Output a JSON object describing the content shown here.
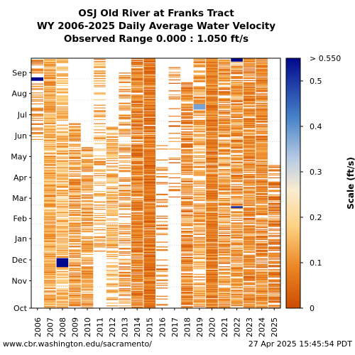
{
  "title": {
    "line1": "OSJ Old River at Franks Tract",
    "line2": "WY 2006-2025 Daily Average Water Velocity",
    "line3": "Observed Range 0.000 : 1.050 ft/s"
  },
  "footer": {
    "url": "www.cbr.washington.edu/sacramento/",
    "timestamp": "27 Apr 2025 15:45:54 PDT"
  },
  "chart_data": {
    "type": "heatmap",
    "title": "OSJ Old River at Franks Tract",
    "subtitle": "WY 2006-2025 Daily Average Water Velocity",
    "x_labels": [
      "2006",
      "2007",
      "2008",
      "2009",
      "2010",
      "2011",
      "2012",
      "2013",
      "2014",
      "2015",
      "2016",
      "2017",
      "2018",
      "2019",
      "2020",
      "2021",
      "2022",
      "2023",
      "2024",
      "2025"
    ],
    "y_labels": [
      "Oct",
      "Nov",
      "Dec",
      "Jan",
      "Feb",
      "Mar",
      "Apr",
      "May",
      "Jun",
      "Jul",
      "Aug",
      "Sep"
    ],
    "colorbar": {
      "label": "Scale (ft/s)",
      "ticks": [
        0,
        0.1,
        0.2,
        0.3,
        0.4,
        0.5
      ],
      "max_label": "> 0.550",
      "range": [
        0,
        0.55
      ]
    },
    "coverage": [
      {
        "year": "2006",
        "start_day": 245,
        "end_day": 365,
        "level": 0.09,
        "density": 0.4
      },
      {
        "year": "2007",
        "start_day": 0,
        "end_day": 365,
        "level": 0.13,
        "density": 0.85
      },
      {
        "year": "2008",
        "start_day": 0,
        "end_day": 365,
        "level": 0.15,
        "density": 0.7
      },
      {
        "year": "2009",
        "start_day": 0,
        "end_day": 270,
        "level": 0.11,
        "density": 0.7
      },
      {
        "year": "2010",
        "start_day": 0,
        "end_day": 235,
        "level": 0.11,
        "density": 0.7
      },
      {
        "year": "2011",
        "start_day": 80,
        "end_day": 365,
        "level": 0.12,
        "density": 0.35
      },
      {
        "year": "2012",
        "start_day": 0,
        "end_day": 265,
        "level": 0.14,
        "density": 0.55
      },
      {
        "year": "2013",
        "start_day": 0,
        "end_day": 345,
        "level": 0.1,
        "density": 0.4
      },
      {
        "year": "2014",
        "start_day": 0,
        "end_day": 365,
        "level": 0.08,
        "density": 0.85
      },
      {
        "year": "2015",
        "start_day": 0,
        "end_day": 365,
        "level": 0.07,
        "density": 0.95
      },
      {
        "year": "2016",
        "start_day": 0,
        "end_day": 240,
        "level": 0.08,
        "density": 0.2
      },
      {
        "year": "2017",
        "start_day": 160,
        "end_day": 365,
        "level": 0.08,
        "density": 0.15
      },
      {
        "year": "2018",
        "start_day": 0,
        "end_day": 330,
        "level": 0.09,
        "density": 0.75
      },
      {
        "year": "2019",
        "start_day": 0,
        "end_day": 365,
        "level": 0.12,
        "density": 0.6
      },
      {
        "year": "2020",
        "start_day": 0,
        "end_day": 365,
        "level": 0.08,
        "density": 0.95
      },
      {
        "year": "2021",
        "start_day": 0,
        "end_day": 365,
        "level": 0.1,
        "density": 0.7
      },
      {
        "year": "2022",
        "start_day": 0,
        "end_day": 365,
        "level": 0.1,
        "density": 0.7
      },
      {
        "year": "2023",
        "start_day": 0,
        "end_day": 365,
        "level": 0.09,
        "density": 0.8
      },
      {
        "year": "2024",
        "start_day": 0,
        "end_day": 365,
        "level": 0.09,
        "density": 0.8
      },
      {
        "year": "2025",
        "start_day": 0,
        "end_day": 210,
        "level": 0.07,
        "density": 0.55
      }
    ],
    "highlights": [
      {
        "year": "2006",
        "start_day": 332,
        "end_day": 337,
        "value": 0.55
      },
      {
        "year": "2008",
        "start_day": 60,
        "end_day": 73,
        "value": 0.55
      },
      {
        "year": "2019",
        "start_day": 290,
        "end_day": 298,
        "value": 0.38
      },
      {
        "year": "2022",
        "start_day": 146,
        "end_day": 149,
        "value": 0.5
      },
      {
        "year": "2022",
        "start_day": 360,
        "end_day": 365,
        "value": 0.55
      }
    ]
  }
}
